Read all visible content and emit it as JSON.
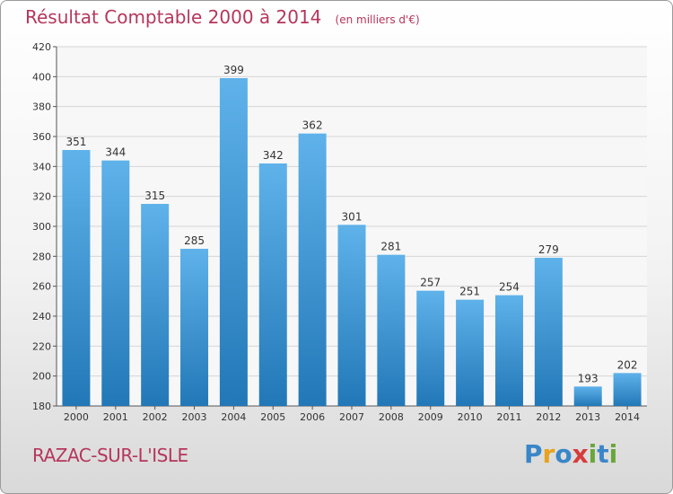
{
  "header": {
    "title": "Résultat Comptable 2000 à 2014",
    "subtitle": "(en milliers d'€)"
  },
  "footer": {
    "commune": "RAZAC-SUR-L'ISLE",
    "logo": "Proxiti"
  },
  "colors": {
    "title": "#b5365c",
    "bar_top": "#5fb2ea",
    "bar_bottom": "#2278b7",
    "grid": "#d6d6d6"
  },
  "chart_data": {
    "type": "bar",
    "categories": [
      "2000",
      "2001",
      "2002",
      "2003",
      "2004",
      "2005",
      "2006",
      "2007",
      "2008",
      "2009",
      "2010",
      "2011",
      "2012",
      "2013",
      "2014"
    ],
    "values": [
      351,
      344,
      315,
      285,
      399,
      342,
      362,
      301,
      281,
      257,
      251,
      254,
      279,
      193,
      202
    ],
    "yticks": [
      180,
      200,
      220,
      240,
      260,
      280,
      300,
      320,
      340,
      360,
      380,
      400,
      420
    ],
    "ylim": [
      180,
      420
    ],
    "grid": true,
    "legend": "none"
  }
}
